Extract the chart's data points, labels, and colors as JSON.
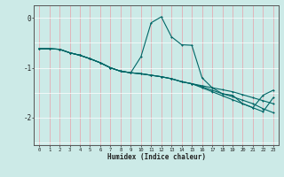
{
  "xlabel": "Humidex (Indice chaleur)",
  "bg_color": "#cceae7",
  "line_color": "#006666",
  "grid_color_v": "#e8a0a8",
  "grid_color_h": "#ffffff",
  "xlim": [
    -0.5,
    23.5
  ],
  "ylim": [
    -2.55,
    0.25
  ],
  "yticks": [
    0,
    -1,
    -2
  ],
  "xticks": [
    0,
    1,
    2,
    3,
    4,
    5,
    6,
    7,
    8,
    9,
    10,
    11,
    12,
    13,
    14,
    15,
    16,
    17,
    18,
    19,
    20,
    21,
    22,
    23
  ],
  "y_spike": [
    -0.62,
    -0.62,
    -0.63,
    -0.7,
    -0.75,
    -0.82,
    -0.9,
    -1.0,
    -1.07,
    -1.1,
    -0.78,
    -0.1,
    0.02,
    -0.38,
    -0.54,
    -0.55,
    -1.2,
    -1.4,
    -1.52,
    -1.55,
    -1.72,
    -1.8,
    -1.55,
    -1.45
  ],
  "y_line2": [
    -0.62,
    -0.62,
    -0.63,
    -0.7,
    -0.75,
    -0.82,
    -0.9,
    -1.0,
    -1.07,
    -1.1,
    -1.12,
    -1.15,
    -1.18,
    -1.22,
    -1.28,
    -1.32,
    -1.36,
    -1.4,
    -1.44,
    -1.48,
    -1.54,
    -1.6,
    -1.66,
    -1.72
  ],
  "y_line3": [
    -0.62,
    -0.62,
    -0.63,
    -0.7,
    -0.75,
    -0.82,
    -0.9,
    -1.0,
    -1.07,
    -1.1,
    -1.12,
    -1.15,
    -1.18,
    -1.22,
    -1.28,
    -1.32,
    -1.38,
    -1.45,
    -1.52,
    -1.58,
    -1.65,
    -1.72,
    -1.82,
    -1.9
  ],
  "y_line4": [
    -0.62,
    -0.62,
    -0.63,
    -0.7,
    -0.75,
    -0.82,
    -0.9,
    -1.0,
    -1.07,
    -1.1,
    -1.12,
    -1.15,
    -1.18,
    -1.22,
    -1.28,
    -1.32,
    -1.4,
    -1.48,
    -1.56,
    -1.64,
    -1.72,
    -1.8,
    -1.88,
    -1.6
  ]
}
